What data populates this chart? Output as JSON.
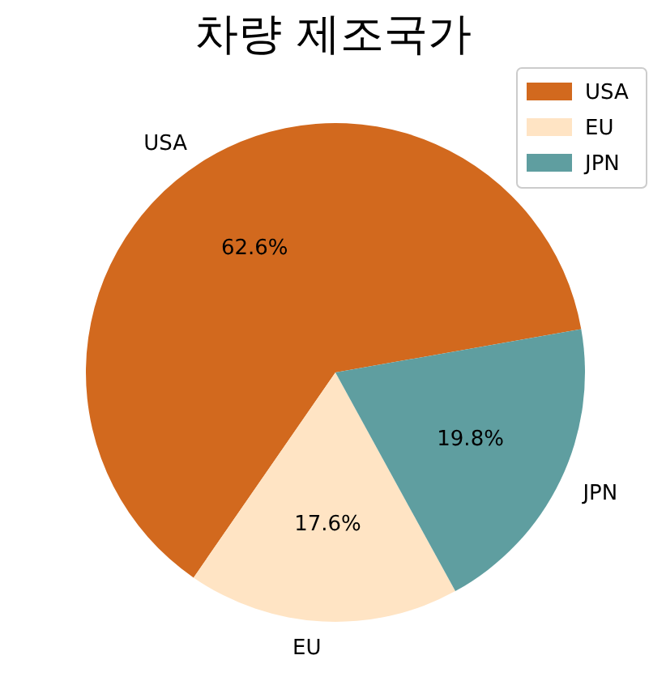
{
  "chart_data": {
    "type": "pie",
    "title": "차량 제조국가",
    "categories": [
      "USA",
      "EU",
      "JPN"
    ],
    "values": [
      62.6,
      17.6,
      19.8
    ],
    "value_labels": [
      "62.6%",
      "17.6%",
      "19.8%"
    ],
    "colors": [
      "#d2691e",
      "#ffe4c4",
      "#5f9ea0"
    ],
    "legend": "top right"
  }
}
